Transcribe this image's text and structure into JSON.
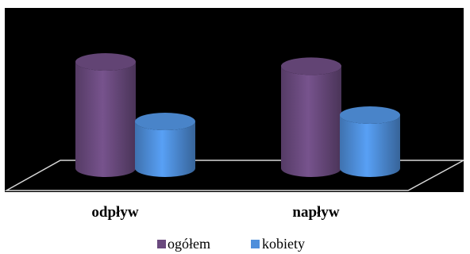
{
  "chart_data": {
    "type": "bar",
    "title": "",
    "xlabel": "",
    "ylabel": "",
    "categories": [
      "odpływ",
      "napływ"
    ],
    "series": [
      {
        "name": "ogółem",
        "values": [
          100,
          96
        ],
        "color": "#6A4A7E"
      },
      {
        "name": "kobiety",
        "values": [
          44,
          50
        ],
        "color": "#4F8FDB"
      }
    ],
    "ylim": [
      0,
      100
    ],
    "grid": false,
    "legend": "bottom",
    "plot_background": "#000000"
  }
}
